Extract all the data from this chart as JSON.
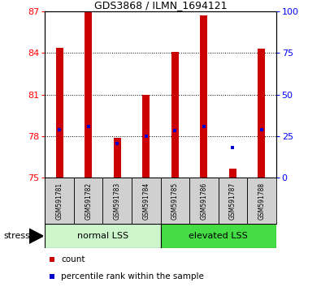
{
  "title": "GDS3868 / ILMN_1694121",
  "samples": [
    "GSM591781",
    "GSM591782",
    "GSM591783",
    "GSM591784",
    "GSM591785",
    "GSM591786",
    "GSM591787",
    "GSM591788"
  ],
  "bar_base": 75,
  "bar_tops": [
    84.4,
    87.0,
    77.9,
    81.0,
    84.1,
    86.7,
    75.7,
    84.3
  ],
  "blue_markers": [
    78.5,
    78.7,
    77.5,
    78.0,
    78.4,
    78.7,
    77.2,
    78.5
  ],
  "ylim": [
    75,
    87
  ],
  "yticks_left": [
    75,
    78,
    81,
    84,
    87
  ],
  "yticks_right": [
    0,
    25,
    50,
    75,
    100
  ],
  "group1_label": "normal LSS",
  "group2_label": "elevated LSS",
  "group1_count": 4,
  "group2_count": 4,
  "bar_color": "#cc0000",
  "blue_color": "#0000cc",
  "group1_bg": "#ccf5cc",
  "group2_bg": "#44dd44",
  "sample_bg": "#d0d0d0",
  "legend_count": "count",
  "legend_pct": "percentile rank within the sample",
  "stress_label": "stress",
  "bar_width": 0.25
}
